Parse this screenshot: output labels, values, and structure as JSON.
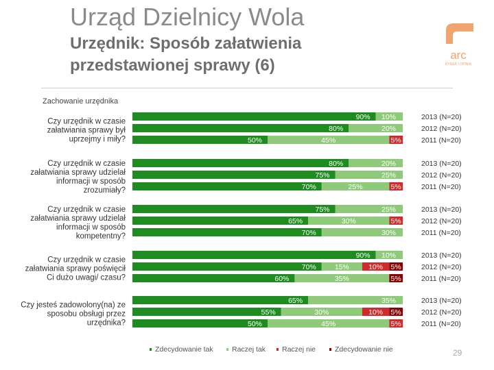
{
  "header": {
    "title": "Urząd Dzielnicy Wola",
    "subtitle_line1": "Urzędnik: Sposób załatwienia",
    "subtitle_line2": "przedstawionej sprawy (6)"
  },
  "logo": {
    "text": "arc",
    "subtext": "RYNEK I OPINIA"
  },
  "section_label": "Zachowanie urzędnika",
  "page_number": "29",
  "colors": {
    "zdecydowanie_tak": "#1e8c1e",
    "raczej_tak": "#8fc97a",
    "raczej_nie": "#d12a2a",
    "zdecydowanie_nie": "#8b0000",
    "row_background": "#e8e8e8",
    "logo": "#f0a470"
  },
  "chart_data": {
    "type": "bar",
    "orientation": "horizontal",
    "stacked": true,
    "normalized": true,
    "title": "Zachowanie urzędnika",
    "xlim": [
      0,
      100
    ],
    "series_names": [
      "Zdecydowanie tak",
      "Raczej tak",
      "Raczej nie",
      "Zdecydowanie nie"
    ],
    "legend": [
      {
        "label": "Zdecydowanie tak",
        "color_key": "zdecydowanie_tak"
      },
      {
        "label": "Raczej tak",
        "color_key": "raczej_tak"
      },
      {
        "label": "Raczej nie",
        "color_key": "raczej_nie"
      },
      {
        "label": "Zdecydowanie nie",
        "color_key": "zdecydowanie_nie"
      }
    ],
    "groups": [
      {
        "label": "Czy urzędnik w czasie załatwiania sprawy był uprzejmy i miły?",
        "rows": [
          {
            "year": "2013 (N=20)",
            "values": [
              90,
              10,
              0,
              0
            ],
            "labels": [
              "90%",
              "10%",
              "",
              ""
            ]
          },
          {
            "year": "2012 (N=20)",
            "values": [
              80,
              20,
              0,
              0
            ],
            "labels": [
              "80%",
              "20%",
              "",
              ""
            ]
          },
          {
            "year": "2011 (N=20)",
            "values": [
              50,
              45,
              5,
              0
            ],
            "labels": [
              "50%",
              "45%",
              "5%",
              ""
            ]
          }
        ]
      },
      {
        "label": "Czy urzędnik w czasie załatwiania sprawy udzielał informacji w sposób zrozumiały?",
        "rows": [
          {
            "year": "2013 (N=20)",
            "values": [
              80,
              20,
              0,
              0
            ],
            "labels": [
              "80%",
              "20%",
              "",
              ""
            ]
          },
          {
            "year": "2012 (N=20)",
            "values": [
              75,
              25,
              0,
              0
            ],
            "labels": [
              "75%",
              "25%",
              "",
              ""
            ]
          },
          {
            "year": "2011 (N=20)",
            "values": [
              70,
              25,
              5,
              0
            ],
            "labels": [
              "70%",
              "25%",
              "5%",
              ""
            ]
          }
        ]
      },
      {
        "label": "Czy urzędnik w czasie załatwiania sprawy udzielał informacji w sposób kompetentny?",
        "rows": [
          {
            "year": "2013 (N=20)",
            "values": [
              75,
              25,
              0,
              0
            ],
            "labels": [
              "75%",
              "25%",
              "",
              ""
            ]
          },
          {
            "year": "2012 (N=20)",
            "values": [
              65,
              30,
              5,
              0
            ],
            "labels": [
              "65%",
              "30%",
              "5%",
              ""
            ]
          },
          {
            "year": "2011 (N=20)",
            "values": [
              70,
              30,
              0,
              0
            ],
            "labels": [
              "70%",
              "30%",
              "",
              ""
            ]
          }
        ]
      },
      {
        "label": "Czy urzędnik w czasie załatwiania sprawy poświęcił Ci dużo uwagi/ czasu?",
        "rows": [
          {
            "year": "2013 (N=20)",
            "values": [
              90,
              10,
              0,
              0
            ],
            "labels": [
              "90%",
              "10%",
              "",
              ""
            ]
          },
          {
            "year": "2012 (N=20)",
            "values": [
              70,
              15,
              10,
              5
            ],
            "labels": [
              "70%",
              "15%",
              "10%",
              "5%"
            ]
          },
          {
            "year": "2011 (N=20)",
            "values": [
              60,
              35,
              0,
              5
            ],
            "labels": [
              "60%",
              "35%",
              "",
              "5%"
            ]
          }
        ]
      },
      {
        "label": "Czy jesteś zadowolony(na) ze sposobu obsługi przez urzędnika?",
        "rows": [
          {
            "year": "2013 (N=20)",
            "values": [
              65,
              35,
              0,
              0
            ],
            "labels": [
              "65%",
              "35%",
              "",
              ""
            ]
          },
          {
            "year": "2012 (N=20)",
            "values": [
              55,
              30,
              10,
              5
            ],
            "labels": [
              "55%",
              "30%",
              "10%",
              "5%"
            ]
          },
          {
            "year": "2011 (N=20)",
            "values": [
              50,
              45,
              5,
              0
            ],
            "labels": [
              "50%",
              "45%",
              "5%",
              ""
            ]
          }
        ]
      }
    ]
  }
}
